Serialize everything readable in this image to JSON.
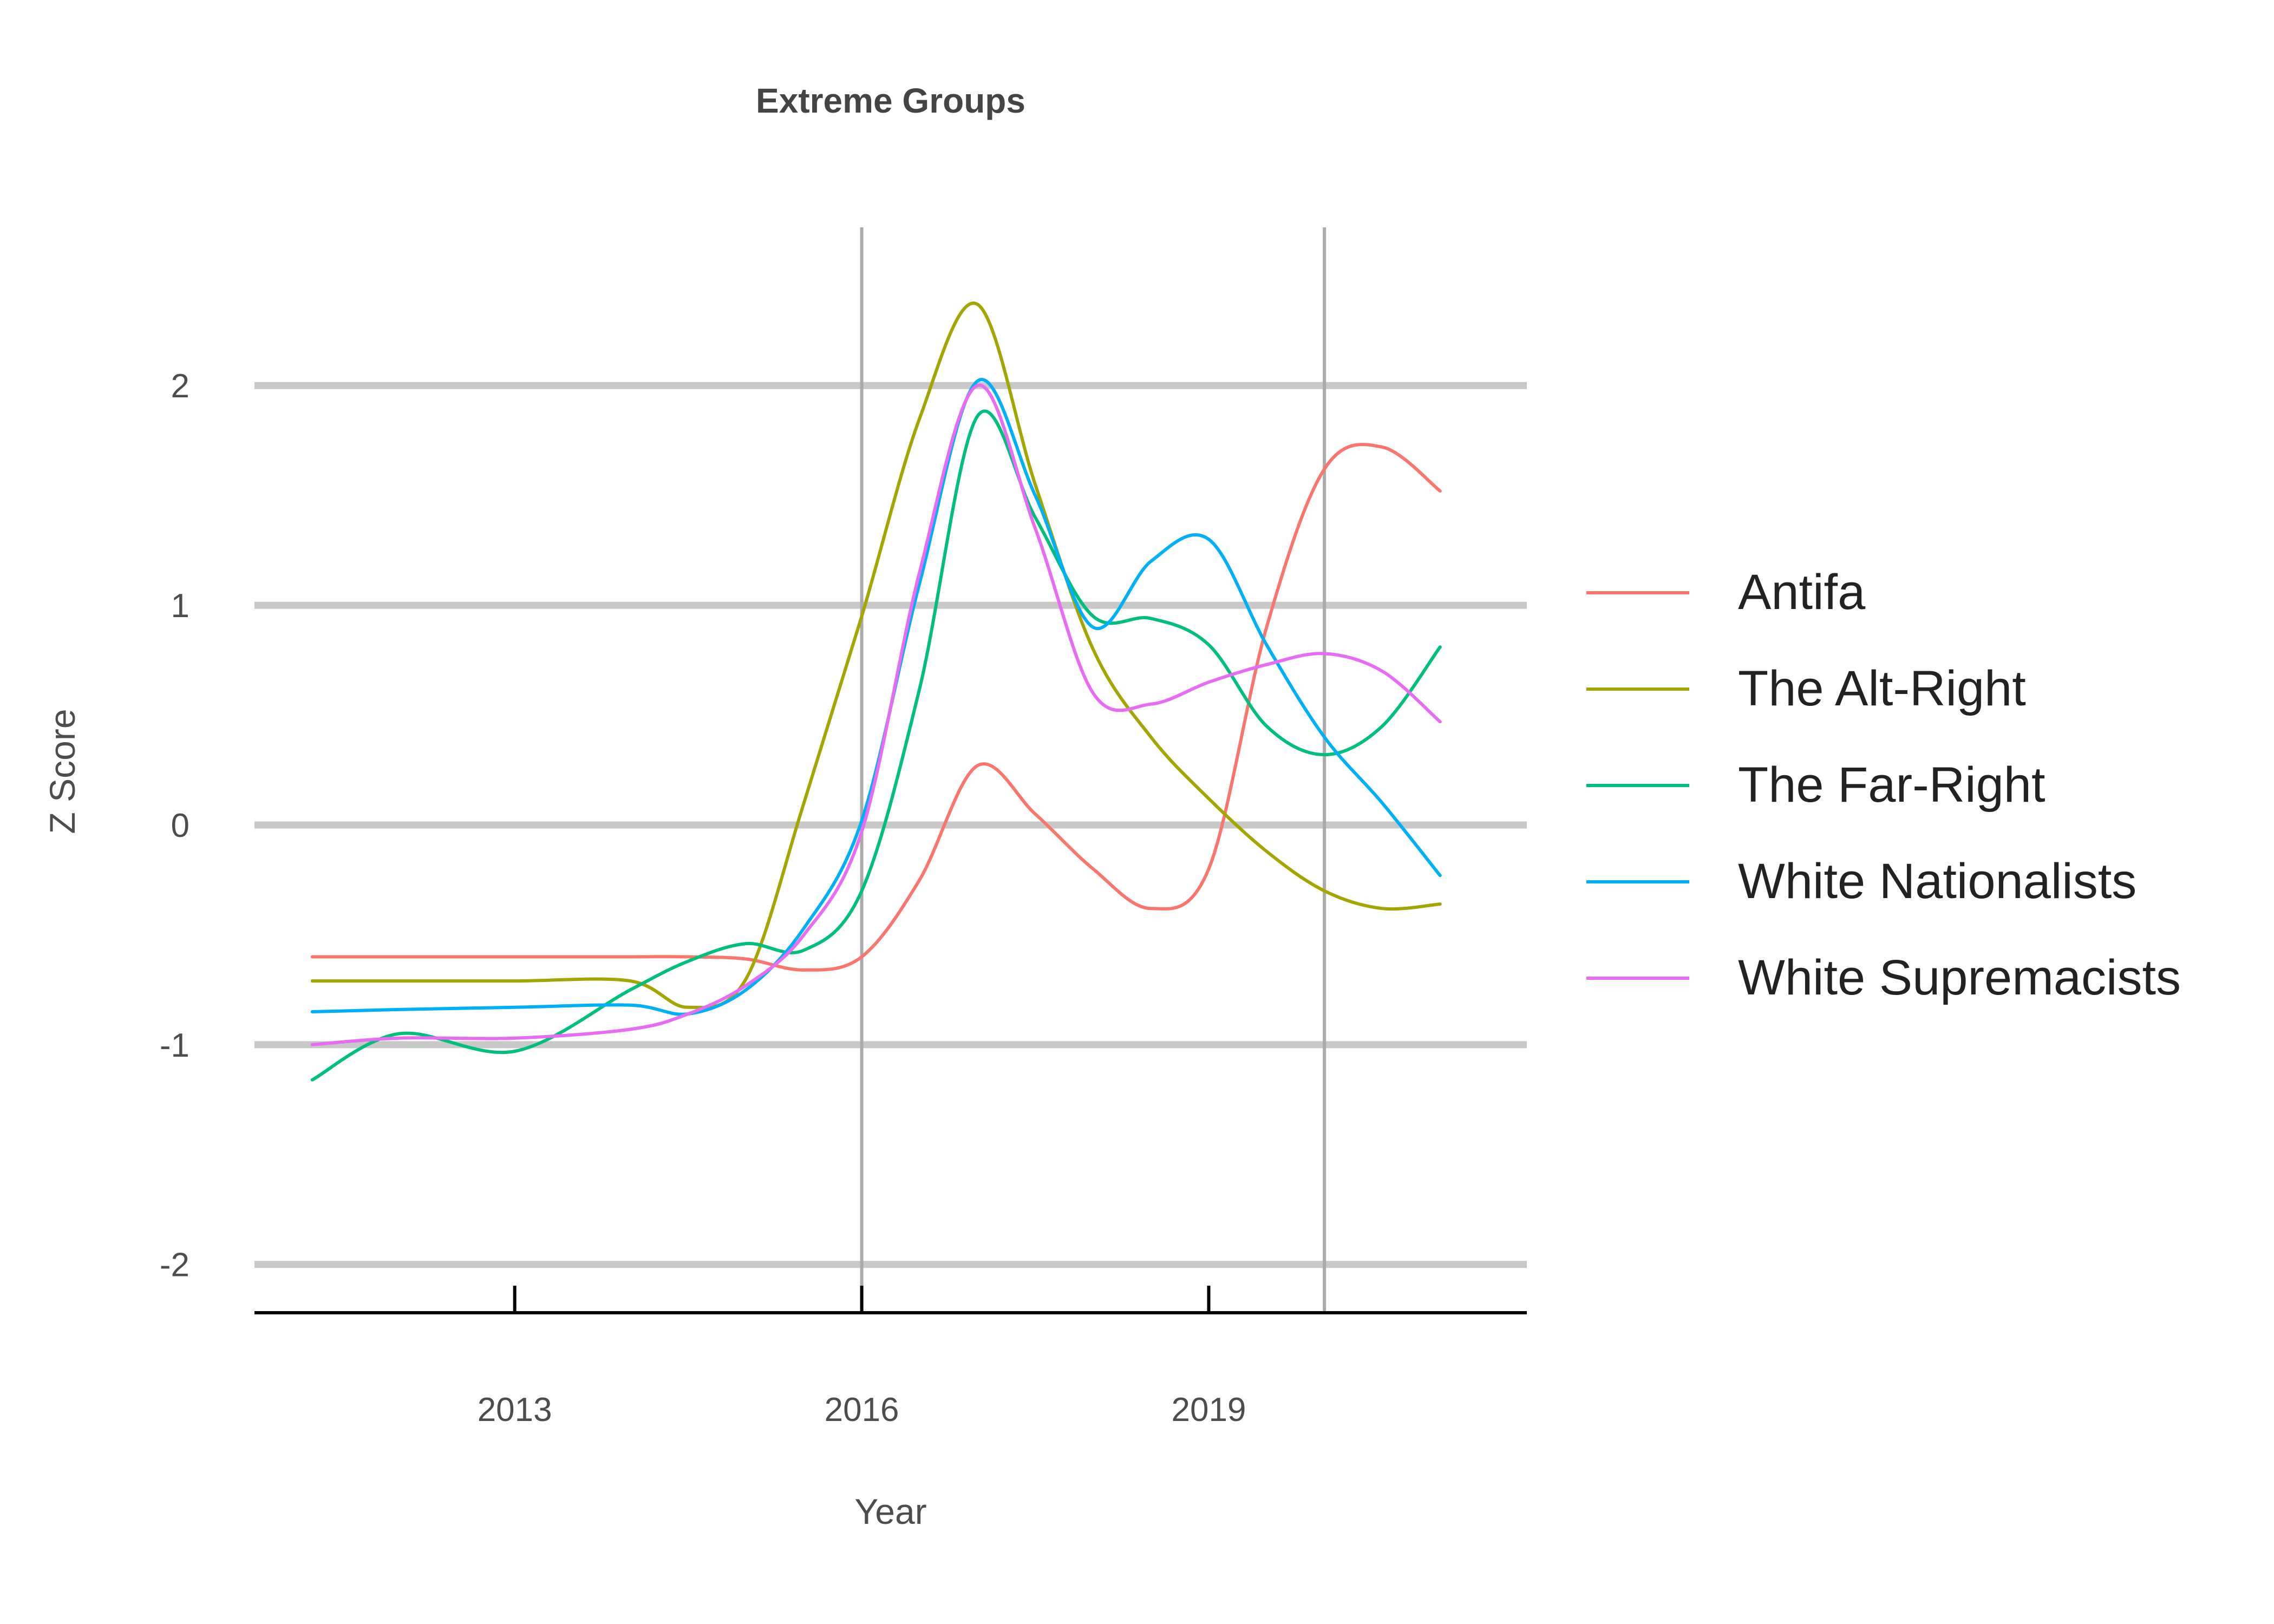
{
  "chart_data": {
    "type": "line",
    "title": "Extreme Groups",
    "xlabel": "Year",
    "ylabel": "Z Score",
    "xlim": [
      2010.75,
      2021.75
    ],
    "ylim": [
      -2.22,
      2.72
    ],
    "x_ticks": [
      2013,
      2016,
      2019
    ],
    "x_tick_labels": [
      "2013",
      "2016",
      "2019"
    ],
    "y_ticks": [
      -2,
      -1,
      0,
      1,
      2
    ],
    "y_tick_labels": [
      "-2",
      "-1",
      "0",
      "1",
      "2"
    ],
    "vlines": [
      2016,
      2020
    ],
    "grid": "horizontal major",
    "legend_position": "right",
    "x": [
      2011.25,
      2012,
      2013,
      2014,
      2014.5,
      2015,
      2015.5,
      2016,
      2016.5,
      2017,
      2017.5,
      2018,
      2018.5,
      2019,
      2019.5,
      2020,
      2020.5,
      2021
    ],
    "series": [
      {
        "name": "Antifa",
        "color": "#F8766D",
        "values": [
          -0.6,
          -0.6,
          -0.6,
          -0.6,
          -0.6,
          -0.61,
          -0.66,
          -0.6,
          -0.25,
          0.27,
          0.05,
          -0.2,
          -0.38,
          -0.2,
          0.9,
          1.62,
          1.72,
          1.52
        ]
      },
      {
        "name": "The Alt-Right",
        "color": "#A3A500",
        "values": [
          -0.71,
          -0.71,
          -0.71,
          -0.71,
          -0.83,
          -0.7,
          0.1,
          0.95,
          1.85,
          2.37,
          1.55,
          0.8,
          0.4,
          0.12,
          -0.12,
          -0.3,
          -0.38,
          -0.36
        ]
      },
      {
        "name": "The Far-Right",
        "color": "#00BF7D",
        "values": [
          -1.16,
          -0.95,
          -1.03,
          -0.75,
          -0.62,
          -0.54,
          -0.57,
          -0.3,
          0.62,
          1.86,
          1.4,
          0.95,
          0.94,
          0.82,
          0.45,
          0.32,
          0.45,
          0.81
        ]
      },
      {
        "name": "White Nationalists",
        "color": "#00B0F6",
        "values": [
          -0.85,
          -0.84,
          -0.83,
          -0.82,
          -0.86,
          -0.75,
          -0.47,
          0.02,
          1.1,
          2.02,
          1.5,
          0.9,
          1.2,
          1.3,
          0.82,
          0.4,
          0.1,
          -0.23
        ]
      },
      {
        "name": "White Supremacists",
        "color": "#E76BF3",
        "values": [
          -1.0,
          -0.97,
          -0.97,
          -0.93,
          -0.86,
          -0.73,
          -0.5,
          -0.03,
          1.15,
          2.0,
          1.35,
          0.6,
          0.55,
          0.65,
          0.73,
          0.78,
          0.7,
          0.47
        ]
      }
    ]
  }
}
